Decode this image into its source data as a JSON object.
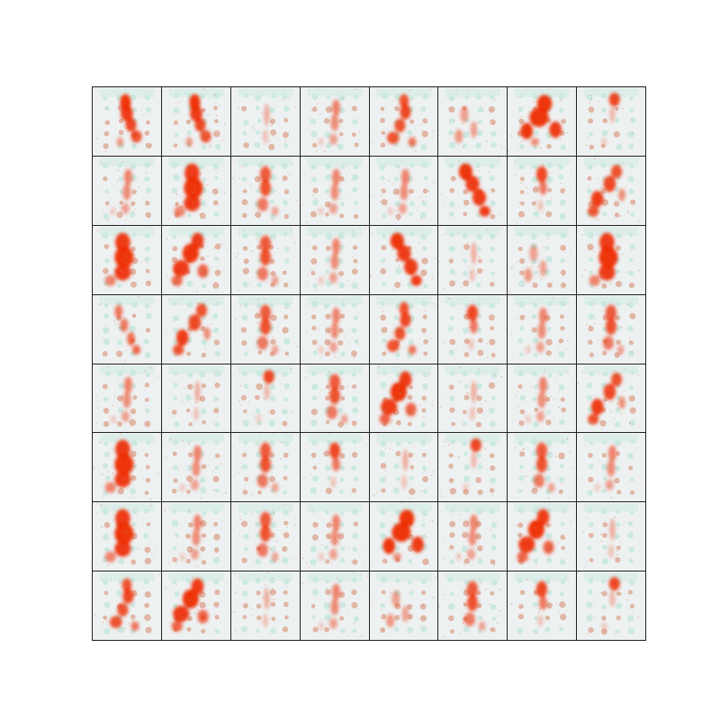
{
  "grid": {
    "rows": 8,
    "cols": 8,
    "background_color": "#eef1f1",
    "border_color": "#222222",
    "tint_color": "#8fdcc4",
    "blob_color": "#ee2a00",
    "blob_dark_color": "#c84a1a"
  },
  "tiles": [
    {
      "figure": "trunk-right-leg"
    },
    {
      "figure": "trunk-right-leg"
    },
    {
      "figure": "faint-thin"
    },
    {
      "figure": "faint-mid"
    },
    {
      "figure": "trunk-left-leg"
    },
    {
      "figure": "faint-left"
    },
    {
      "figure": "heavy-arch"
    },
    {
      "figure": "faint-top"
    },
    {
      "figure": "faint-mid"
    },
    {
      "figure": "heavy-trunk"
    },
    {
      "figure": "mid-trunk"
    },
    {
      "figure": "faint-mid"
    },
    {
      "figure": "faint-mid"
    },
    {
      "figure": "diagonal-right"
    },
    {
      "figure": "short-trunk"
    },
    {
      "figure": "zigzag-left"
    },
    {
      "figure": "heavy-trunk"
    },
    {
      "figure": "heavy-left"
    },
    {
      "figure": "mid-trunk"
    },
    {
      "figure": "faint-mid"
    },
    {
      "figure": "diagonal-right"
    },
    {
      "figure": "faint-thin"
    },
    {
      "figure": "faint-left"
    },
    {
      "figure": "heavy-trunk"
    },
    {
      "figure": "thin-diagonal"
    },
    {
      "figure": "zigzag-left"
    },
    {
      "figure": "mid-trunk"
    },
    {
      "figure": "faint-mid"
    },
    {
      "figure": "trunk-left-leg"
    },
    {
      "figure": "short-trunk"
    },
    {
      "figure": "faint-mid"
    },
    {
      "figure": "mid-trunk"
    },
    {
      "figure": "faint-mid"
    },
    {
      "figure": "faint-thin"
    },
    {
      "figure": "faint-top"
    },
    {
      "figure": "mid-trunk"
    },
    {
      "figure": "heavy-left"
    },
    {
      "figure": "faint-thin"
    },
    {
      "figure": "faint-mid"
    },
    {
      "figure": "zigzag-left"
    },
    {
      "figure": "heavy-trunk"
    },
    {
      "figure": "faint-mid"
    },
    {
      "figure": "mid-trunk"
    },
    {
      "figure": "short-trunk"
    },
    {
      "figure": "faint-thin"
    },
    {
      "figure": "faint-top"
    },
    {
      "figure": "mid-trunk"
    },
    {
      "figure": "faint-mid"
    },
    {
      "figure": "heavy-trunk"
    },
    {
      "figure": "faint-mid"
    },
    {
      "figure": "mid-trunk"
    },
    {
      "figure": "faint-mid"
    },
    {
      "figure": "heavy-arch"
    },
    {
      "figure": "faint-mid"
    },
    {
      "figure": "heavy-left"
    },
    {
      "figure": "faint-thin"
    },
    {
      "figure": "trunk-left-leg"
    },
    {
      "figure": "heavy-left"
    },
    {
      "figure": "faint-thin"
    },
    {
      "figure": "faint-mid"
    },
    {
      "figure": "faint-left"
    },
    {
      "figure": "mid-trunk"
    },
    {
      "figure": "short-trunk"
    },
    {
      "figure": "faint-top"
    }
  ]
}
